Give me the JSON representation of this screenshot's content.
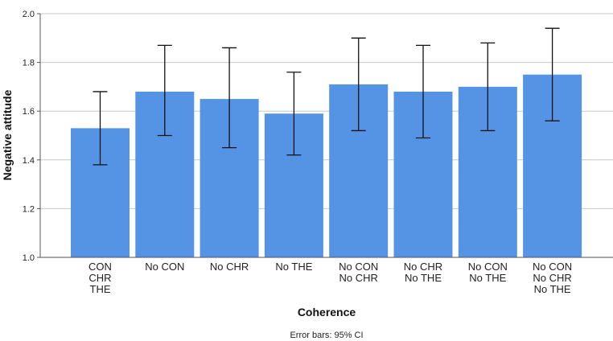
{
  "chart_data": {
    "type": "bar",
    "title": "",
    "xlabel": "Coherence",
    "ylabel": "Negative attitude",
    "footnote": "Error bars: 95% CI",
    "ylim": [
      1.0,
      2.0
    ],
    "yticks": [
      "1.0",
      "1.2",
      "1.4",
      "1.6",
      "1.8",
      "2.0"
    ],
    "grid": true,
    "categories": [
      [
        "CON",
        "CHR",
        "THE"
      ],
      [
        "No CON"
      ],
      [
        "No CHR"
      ],
      [
        "No THE"
      ],
      [
        "No CON",
        "No CHR"
      ],
      [
        "No CHR",
        "No THE"
      ],
      [
        "No CON",
        "No THE"
      ],
      [
        "No CON",
        "No CHR",
        "No THE"
      ]
    ],
    "values": [
      1.53,
      1.68,
      1.65,
      1.59,
      1.71,
      1.68,
      1.7,
      1.75
    ],
    "ci_low": [
      1.38,
      1.5,
      1.45,
      1.42,
      1.52,
      1.49,
      1.52,
      1.56
    ],
    "ci_high": [
      1.68,
      1.87,
      1.86,
      1.76,
      1.9,
      1.87,
      1.88,
      1.94
    ],
    "colors": {
      "bar": "#5594e5",
      "error": "#111111",
      "grid": "#c8c8c8",
      "axis": "#555555"
    }
  }
}
